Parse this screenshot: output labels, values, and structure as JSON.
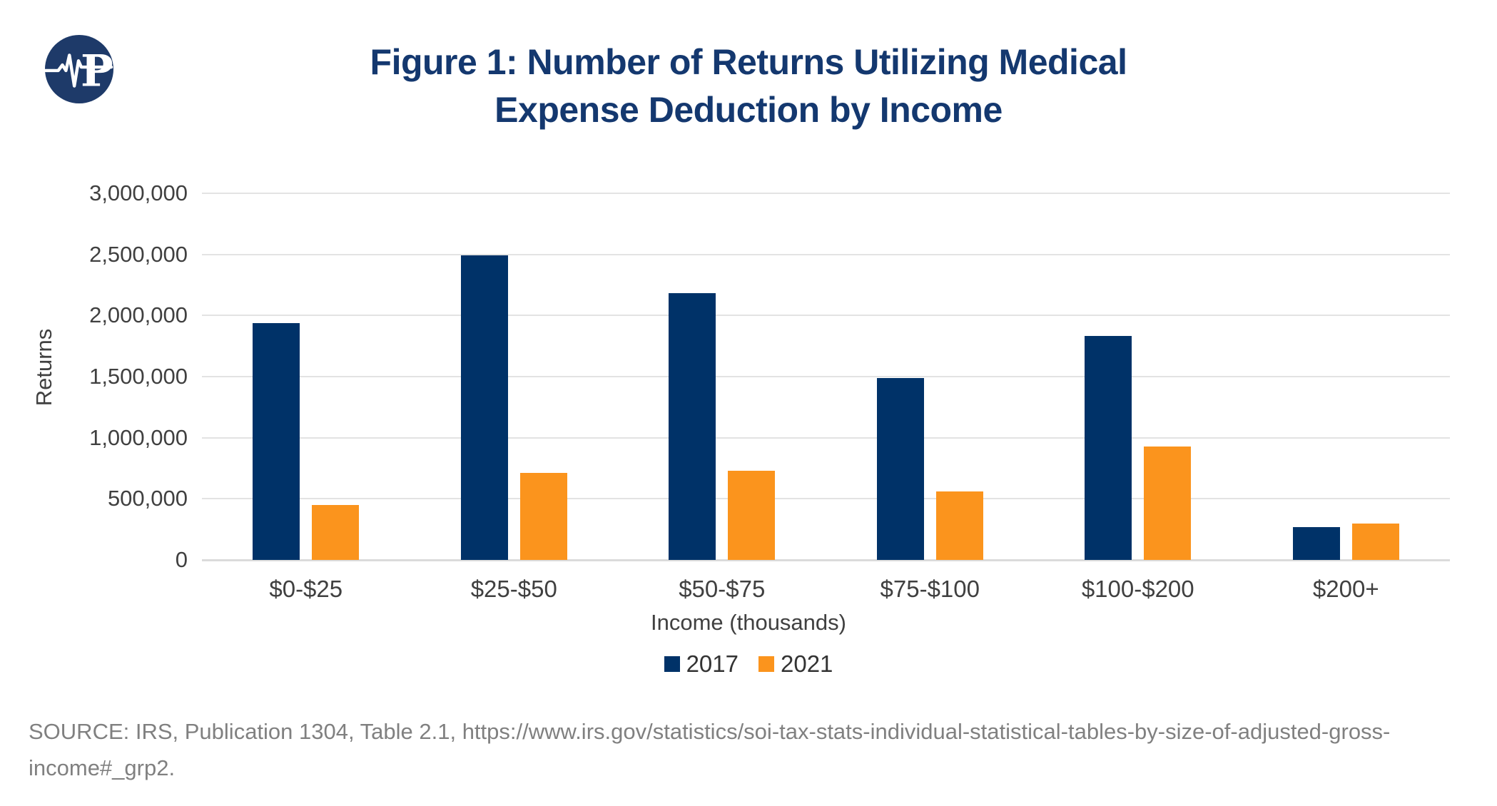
{
  "logo": {
    "icon": "pulse-ekg-p-logo",
    "color": "#1E3A69"
  },
  "title": {
    "lines": [
      "Figure 1: Number of Returns Utilizing Medical",
      "Expense Deduction by Income"
    ],
    "color": "#14386F"
  },
  "chart_data": {
    "type": "bar",
    "title": "Figure 1: Number of Returns Utilizing Medical Expense Deduction by Income",
    "categories": [
      "$0-$25",
      "$25-$50",
      "$50-$75",
      "$75-$100",
      "$100-$200",
      "$200+"
    ],
    "series": [
      {
        "name": "2017",
        "color": "#003268",
        "values": [
          1940000,
          2490000,
          2180000,
          1490000,
          1830000,
          270000
        ]
      },
      {
        "name": "2021",
        "color": "#FB941D",
        "values": [
          450000,
          710000,
          730000,
          560000,
          930000,
          300000
        ]
      }
    ],
    "xlabel": "Income (thousands)",
    "ylabel": "Returns",
    "ylim": [
      0,
      3000000
    ],
    "ytick_step": 500000,
    "ytick_labels": [
      "0",
      "500,000",
      "1,000,000",
      "1,500,000",
      "2,000,000",
      "2,500,000",
      "3,000,000"
    ],
    "grid": "horizontal",
    "legend_position": "bottom"
  },
  "source": {
    "lines": [
      "SOURCE: IRS, Publication 1304, Table 2.1, https://www.irs.gov/statistics/soi-tax-stats-individual-statistical-tables-by-size-of-adjusted-gross-",
      "income#_grp2."
    ]
  }
}
